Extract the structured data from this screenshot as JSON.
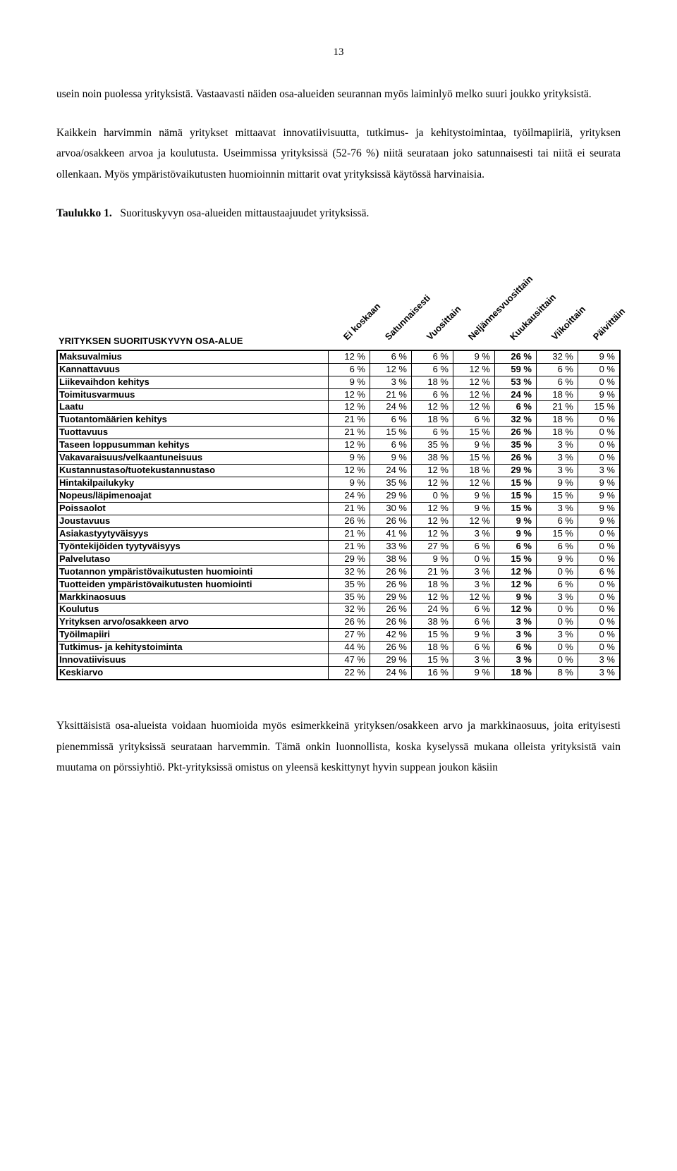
{
  "page_number": "13",
  "para1": "usein noin puolessa yrityksistä. Vastaavasti näiden osa-alueiden seurannan myös laiminlyö melko suuri joukko yrityksistä.",
  "para2": "Kaikkein harvimmin nämä yritykset mittaavat innovatiivisuutta, tutkimus- ja kehitystoimintaa, työilmapiiriä, yrityksen arvoa/osakkeen arvoa ja koulutusta. Useimmissa yrityksissä (52-76 %) niitä seurataan joko satunnaisesti tai niitä ei seurata ollenkaan. Myös ympäristövaikutusten huomioinnin mittarit ovat yrityksissä käytössä harvinaisia.",
  "table_caption_bold": "Taulukko 1.",
  "table_caption_rest": "   Suorituskyvyn osa-alueiden mittaustaajuudet yrityksissä.",
  "para3": "Yksittäisistä osa-alueista voidaan huomioida myös esimerkkeinä yrityksen/osakkeen arvo ja markkinaosuus, joita erityisesti pienemmissä yrityksissä seurataan harvemmin. Tämä onkin luonnollista, koska kyselyssä mukana olleista yrityksistä vain muutama on pörssiyhtiö. Pkt-yrityksissä omistus on yleensä keskittynyt hyvin suppean joukon käsiin",
  "table": {
    "corner_label": "YRITYKSEN SUORITUSKYVYN OSA-ALUE",
    "columns": [
      "Ei koskaan",
      "Satunnaisesti",
      "Vuosittain",
      "Neljännesvuosittain",
      "Kuukausittain",
      "Viikoittain",
      "Päivittäin"
    ],
    "bold_col_index": 4,
    "rows": [
      {
        "label": "Maksuvalmius",
        "v": [
          "12 %",
          "6 %",
          "6 %",
          "9 %",
          "26 %",
          "32 %",
          "9 %"
        ]
      },
      {
        "label": "Kannattavuus",
        "v": [
          "6 %",
          "12 %",
          "6 %",
          "12 %",
          "59 %",
          "6 %",
          "0 %"
        ]
      },
      {
        "label": "Liikevaihdon kehitys",
        "v": [
          "9 %",
          "3 %",
          "18 %",
          "12 %",
          "53 %",
          "6 %",
          "0 %"
        ]
      },
      {
        "label": "Toimitusvarmuus",
        "v": [
          "12 %",
          "21 %",
          "6 %",
          "12 %",
          "24 %",
          "18 %",
          "9 %"
        ]
      },
      {
        "label": "Laatu",
        "v": [
          "12 %",
          "24 %",
          "12 %",
          "12 %",
          "6 %",
          "21 %",
          "15 %"
        ]
      },
      {
        "label": "Tuotantomäärien kehitys",
        "v": [
          "21 %",
          "6 %",
          "18 %",
          "6 %",
          "32 %",
          "18 %",
          "0 %"
        ]
      },
      {
        "label": "Tuottavuus",
        "v": [
          "21 %",
          "15 %",
          "6 %",
          "15 %",
          "26 %",
          "18 %",
          "0 %"
        ]
      },
      {
        "label": "Taseen loppusumman kehitys",
        "v": [
          "12 %",
          "6 %",
          "35 %",
          "9 %",
          "35 %",
          "3 %",
          "0 %"
        ]
      },
      {
        "label": "Vakavaraisuus/velkaantuneisuus",
        "v": [
          "9 %",
          "9 %",
          "38 %",
          "15 %",
          "26 %",
          "3 %",
          "0 %"
        ]
      },
      {
        "label": "Kustannustaso/tuotekustannustaso",
        "v": [
          "12 %",
          "24 %",
          "12 %",
          "18 %",
          "29 %",
          "3 %",
          "3 %"
        ]
      },
      {
        "label": "Hintakilpailukyky",
        "v": [
          "9 %",
          "35 %",
          "12 %",
          "12 %",
          "15 %",
          "9 %",
          "9 %"
        ]
      },
      {
        "label": "Nopeus/läpimenoajat",
        "v": [
          "24 %",
          "29 %",
          "0 %",
          "9 %",
          "15 %",
          "15 %",
          "9 %"
        ]
      },
      {
        "label": "Poissaolot",
        "v": [
          "21 %",
          "30 %",
          "12 %",
          "9 %",
          "15 %",
          "3 %",
          "9 %"
        ]
      },
      {
        "label": "Joustavuus",
        "v": [
          "26 %",
          "26 %",
          "12 %",
          "12 %",
          "9 %",
          "6 %",
          "9 %"
        ]
      },
      {
        "label": "Asiakastyytyväisyys",
        "v": [
          "21 %",
          "41 %",
          "12 %",
          "3 %",
          "9 %",
          "15 %",
          "0 %"
        ]
      },
      {
        "label": "Työntekijöiden tyytyväisyys",
        "v": [
          "21 %",
          "33 %",
          "27 %",
          "6 %",
          "6 %",
          "6 %",
          "0 %"
        ]
      },
      {
        "label": "Palvelutaso",
        "v": [
          "29 %",
          "38 %",
          "9 %",
          "0 %",
          "15 %",
          "9 %",
          "0 %"
        ]
      },
      {
        "label": "Tuotannon ympäristövaikutusten huomiointi",
        "v": [
          "32 %",
          "26 %",
          "21 %",
          "3 %",
          "12 %",
          "0 %",
          "6 %"
        ]
      },
      {
        "label": "Tuotteiden ympäristövaikutusten huomiointi",
        "v": [
          "35 %",
          "26 %",
          "18 %",
          "3 %",
          "12 %",
          "6 %",
          "0 %"
        ]
      },
      {
        "label": "Markkinaosuus",
        "v": [
          "35 %",
          "29 %",
          "12 %",
          "12 %",
          "9 %",
          "3 %",
          "0 %"
        ]
      },
      {
        "label": "Koulutus",
        "v": [
          "32 %",
          "26 %",
          "24 %",
          "6 %",
          "12 %",
          "0 %",
          "0 %"
        ]
      },
      {
        "label": "Yrityksen arvo/osakkeen arvo",
        "v": [
          "26 %",
          "26 %",
          "38 %",
          "6 %",
          "3 %",
          "0 %",
          "0 %"
        ]
      },
      {
        "label": "Työilmapiiri",
        "v": [
          "27 %",
          "42 %",
          "15 %",
          "9 %",
          "3 %",
          "3 %",
          "0 %"
        ]
      },
      {
        "label": "Tutkimus- ja kehitystoiminta",
        "v": [
          "44 %",
          "26 %",
          "18 %",
          "6 %",
          "6 %",
          "0 %",
          "0 %"
        ]
      },
      {
        "label": "Innovatiivisuus",
        "v": [
          "47 %",
          "29 %",
          "15 %",
          "3 %",
          "3 %",
          "0 %",
          "3 %"
        ]
      },
      {
        "label": "Keskiarvo",
        "v": [
          "22 %",
          "24 %",
          "16 %",
          "9 %",
          "18 %",
          "8 %",
          "3 %"
        ]
      }
    ]
  }
}
